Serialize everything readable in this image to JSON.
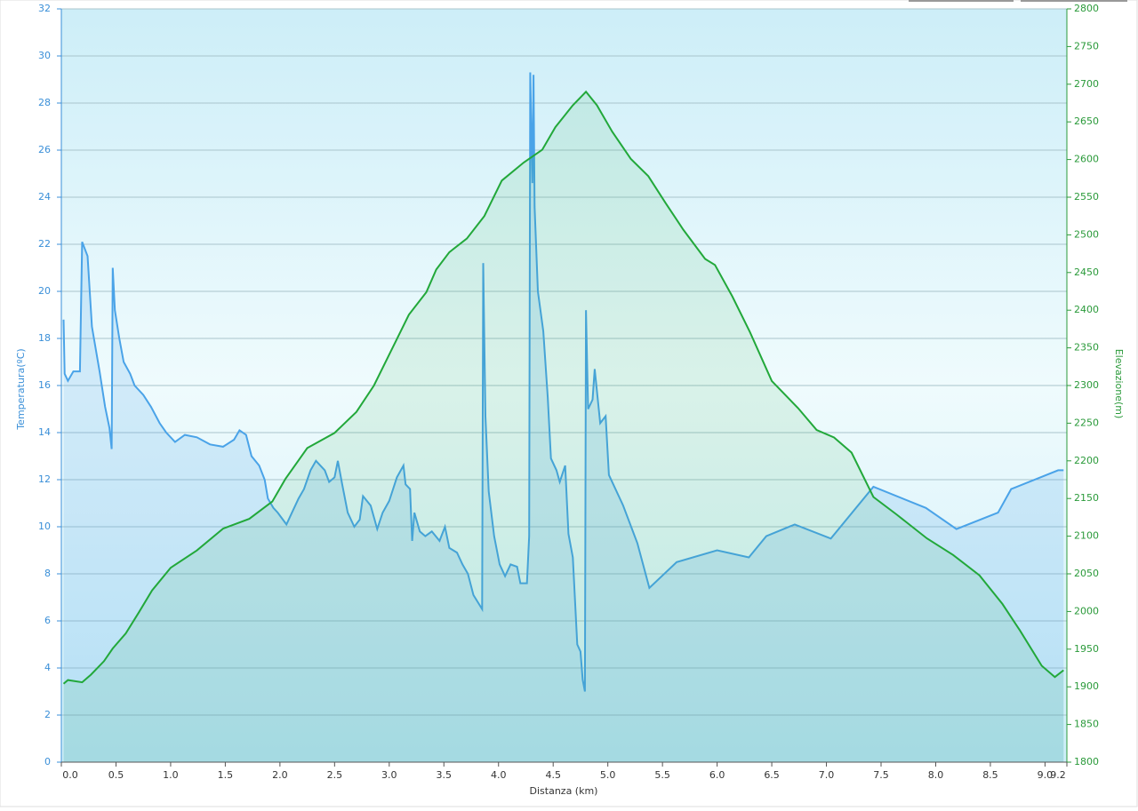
{
  "chart_data": {
    "type": "line",
    "x_label": "Distanza  (km)",
    "y_label": "Temperatura(ºC)",
    "y2_label": "Elevazione(m)",
    "xlim": [
      0,
      9.2
    ],
    "xticks": [
      {
        "value": 0,
        "label": "0.0"
      },
      0.5,
      {
        "value": 1,
        "label": "1.0"
      },
      1.5,
      {
        "value": 2,
        "label": "2.0"
      },
      2.5,
      {
        "value": 3,
        "label": "3.0"
      },
      3.5,
      {
        "value": 4,
        "label": "4.0"
      },
      4.5,
      {
        "value": 5,
        "label": "5.0"
      },
      5.5,
      {
        "value": 6,
        "label": "6.0"
      },
      6.5,
      {
        "value": 7,
        "label": "7.0"
      },
      7.5,
      {
        "value": 8,
        "label": "8.0"
      },
      8.5,
      {
        "value": 9,
        "label": "9.0"
      },
      9.2
    ],
    "ylim": [
      0,
      32
    ],
    "yticks": [
      0,
      2,
      4,
      6,
      8,
      10,
      12,
      14,
      16,
      18,
      20,
      22,
      24,
      26,
      28,
      30,
      32
    ],
    "y2lim": [
      1800,
      2800
    ],
    "y2ticks": [
      1800,
      1850,
      1900,
      1950,
      2000,
      2050,
      2100,
      2150,
      2200,
      2250,
      2300,
      2350,
      2400,
      2450,
      2500,
      2550,
      2600,
      2650,
      2700,
      2750,
      2800
    ],
    "grid": true,
    "series": [
      {
        "name": "Temperatura",
        "color": "#4aa3e8",
        "axis": "y",
        "x": [
          0.02,
          0.03,
          0.06,
          0.11,
          0.17,
          0.19,
          0.24,
          0.28,
          0.35,
          0.4,
          0.44,
          0.46,
          0.47,
          0.49,
          0.53,
          0.57,
          0.63,
          0.67,
          0.75,
          0.82,
          0.9,
          0.96,
          1.04,
          1.13,
          1.24,
          1.36,
          1.48,
          1.58,
          1.63,
          1.69,
          1.74,
          1.81,
          1.86,
          1.89,
          1.94,
          1.98,
          2.06,
          2.11,
          2.17,
          2.22,
          2.28,
          2.33,
          2.41,
          2.45,
          2.5,
          2.53,
          2.57,
          2.62,
          2.68,
          2.73,
          2.76,
          2.83,
          2.89,
          2.94,
          3.0,
          3.07,
          3.13,
          3.15,
          3.19,
          3.21,
          3.23,
          3.28,
          3.33,
          3.39,
          3.46,
          3.51,
          3.55,
          3.62,
          3.67,
          3.72,
          3.77,
          3.85,
          3.86,
          3.88,
          3.91,
          3.96,
          4.01,
          4.06,
          4.11,
          4.17,
          4.2,
          4.26,
          4.28,
          4.29,
          4.31,
          4.32,
          4.33,
          4.36,
          4.41,
          4.45,
          4.48,
          4.53,
          4.56,
          4.61,
          4.64,
          4.68,
          4.72,
          4.75,
          4.77,
          4.79,
          4.8,
          4.82,
          4.86,
          4.88,
          4.93,
          4.98,
          5.01,
          5.14,
          5.27,
          5.38,
          5.63,
          6.0,
          6.29,
          6.45,
          6.71,
          7.04,
          7.43,
          7.91,
          8.19,
          8.57,
          8.69,
          9.12,
          9.17
        ],
        "values": [
          18.8,
          16.5,
          16.2,
          16.6,
          16.6,
          22.1,
          21.5,
          18.5,
          16.6,
          15.1,
          14.2,
          13.3,
          21,
          19.2,
          18,
          17,
          16.5,
          16,
          15.6,
          15.1,
          14.4,
          14,
          13.6,
          13.9,
          13.8,
          13.5,
          13.4,
          13.7,
          14.1,
          13.9,
          13,
          12.6,
          12,
          11.2,
          10.8,
          10.6,
          10.1,
          10.6,
          11.2,
          11.6,
          12.4,
          12.8,
          12.4,
          11.9,
          12.1,
          12.8,
          11.8,
          10.6,
          10,
          10.3,
          11.3,
          10.9,
          9.9,
          10.6,
          11.1,
          12.1,
          12.6,
          11.8,
          11.6,
          9.4,
          10.6,
          9.8,
          9.6,
          9.8,
          9.4,
          10,
          9.1,
          8.9,
          8.4,
          8,
          7.1,
          6.5,
          21.2,
          14.7,
          11.5,
          9.6,
          8.4,
          7.9,
          8.4,
          8.3,
          7.6,
          7.6,
          9.6,
          29.3,
          24.6,
          29.2,
          23.6,
          20,
          18.3,
          15.5,
          12.9,
          12.4,
          11.9,
          12.6,
          9.7,
          8.7,
          5,
          4.7,
          3.5,
          3,
          19.2,
          15,
          15.4,
          16.7,
          14.4,
          14.7,
          12.2,
          10.9,
          9.3,
          7.4,
          8.5,
          9,
          8.7,
          9.6,
          10.1,
          9.5,
          11.7,
          10.8,
          9.9,
          10.6,
          11.6,
          12.4,
          12.4
        ]
      },
      {
        "name": "Elevazione",
        "color": "#22a83a",
        "axis": "y2",
        "x": [
          0.02,
          0.06,
          0.19,
          0.27,
          0.39,
          0.47,
          0.59,
          0.71,
          0.83,
          1.0,
          1.24,
          1.48,
          1.72,
          1.93,
          2.05,
          2.25,
          2.5,
          2.7,
          2.86,
          3.02,
          3.18,
          3.34,
          3.43,
          3.55,
          3.71,
          3.87,
          4.03,
          4.23,
          4.4,
          4.52,
          4.68,
          4.8,
          4.9,
          5.04,
          5.21,
          5.37,
          5.53,
          5.69,
          5.89,
          5.98,
          6.14,
          6.3,
          6.5,
          6.74,
          6.91,
          7.07,
          7.23,
          7.43,
          7.64,
          7.92,
          8.16,
          8.4,
          8.61,
          8.77,
          8.97,
          9.09,
          9.17
        ],
        "values": [
          1904,
          1909,
          1906,
          1916,
          1934,
          1951,
          1971,
          1999,
          2028,
          2058,
          2081,
          2110,
          2123,
          2146,
          2176,
          2217,
          2237,
          2265,
          2300,
          2347,
          2394,
          2424,
          2454,
          2477,
          2495,
          2525,
          2572,
          2596,
          2613,
          2643,
          2672,
          2690,
          2672,
          2637,
          2601,
          2578,
          2542,
          2507,
          2468,
          2460,
          2418,
          2371,
          2306,
          2270,
          2241,
          2231,
          2211,
          2152,
          2129,
          2097,
          2075,
          2048,
          2010,
          1975,
          1928,
          1913,
          1922
        ]
      }
    ]
  }
}
